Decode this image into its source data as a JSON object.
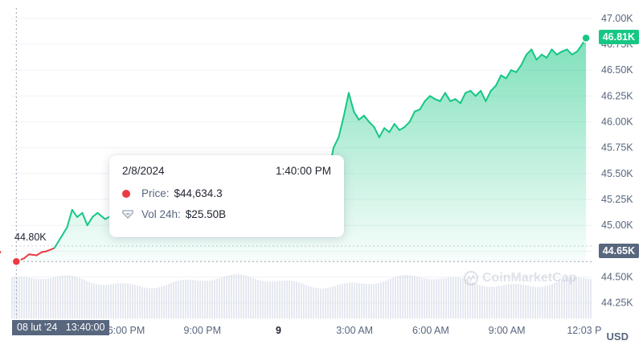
{
  "chart_data": {
    "type": "area",
    "title": "",
    "xlabel": "",
    "ylabel": "",
    "ylim": [
      44.1,
      47.1
    ],
    "y_ticks": [
      "47.00K",
      "46.75K",
      "46.50K",
      "46.25K",
      "46.00K",
      "45.75K",
      "45.50K",
      "45.25K",
      "45.00K",
      "44.75K",
      "44.50K",
      "44.25K"
    ],
    "y_tick_values": [
      47.0,
      46.75,
      46.5,
      46.25,
      46.0,
      45.75,
      45.5,
      45.25,
      45.0,
      44.75,
      44.5,
      44.25
    ],
    "x_ticks": [
      {
        "label": "6:00 PM",
        "h": 4.33,
        "bold": false
      },
      {
        "label": "9:00 PM",
        "h": 7.33,
        "bold": false
      },
      {
        "label": "9",
        "h": 10.33,
        "bold": true
      },
      {
        "label": "3:00 AM",
        "h": 13.33,
        "bold": false
      },
      {
        "label": "6:00 AM",
        "h": 16.33,
        "bold": false
      },
      {
        "label": "9:00 AM",
        "h": 19.33,
        "bold": false
      },
      {
        "label": "12:03 P",
        "h": 22.38,
        "bold": false
      }
    ],
    "x_unit": "hours since 2/8/2024 1:40:00 PM",
    "xlim": [
      -0.2,
      22.7
    ],
    "open_price": 44.65,
    "reference_label": "44.80K",
    "reference_value": 44.8,
    "series": [
      {
        "color_up": "#16c784",
        "color_down": "#ea3943",
        "x": [
          0,
          0.3,
          0.5,
          0.8,
          1.0,
          1.2,
          1.5,
          1.7,
          2.0,
          2.2,
          2.4,
          2.6,
          2.8,
          3.0,
          3.2,
          3.5,
          3.8,
          4.0,
          4.3,
          4.6,
          5.0,
          5.5,
          6.0,
          6.5,
          7.0,
          7.5,
          8.0,
          8.5,
          9.0,
          9.5,
          10.0,
          10.5,
          11.0,
          11.5,
          12.0,
          12.3,
          12.5,
          12.7,
          12.9,
          13.1,
          13.3,
          13.5,
          13.7,
          13.9,
          14.1,
          14.3,
          14.5,
          14.7,
          14.9,
          15.1,
          15.3,
          15.5,
          15.7,
          15.9,
          16.1,
          16.3,
          16.5,
          16.7,
          16.9,
          17.1,
          17.3,
          17.5,
          17.7,
          17.9,
          18.1,
          18.3,
          18.5,
          18.7,
          18.9,
          19.1,
          19.3,
          19.5,
          19.7,
          19.9,
          20.1,
          20.3,
          20.5,
          20.7,
          20.9,
          21.1,
          21.3,
          21.5,
          21.7,
          21.9,
          22.1,
          22.3,
          22.45
        ],
        "values": [
          44.65,
          44.68,
          44.72,
          44.71,
          44.74,
          44.75,
          44.78,
          44.86,
          44.98,
          45.15,
          45.08,
          45.12,
          45.0,
          45.08,
          45.12,
          45.06,
          45.1,
          45.05,
          45.1,
          45.06,
          45.12,
          45.08,
          45.14,
          45.1,
          45.15,
          45.12,
          45.18,
          45.15,
          45.2,
          45.17,
          45.22,
          45.2,
          45.25,
          45.28,
          45.35,
          45.5,
          45.75,
          45.85,
          46.05,
          46.28,
          46.1,
          46.02,
          46.06,
          46.0,
          45.95,
          45.85,
          45.94,
          45.9,
          45.98,
          45.92,
          45.95,
          46.0,
          46.1,
          46.12,
          46.2,
          46.25,
          46.22,
          46.2,
          46.28,
          46.2,
          46.22,
          46.18,
          46.28,
          46.3,
          46.25,
          46.3,
          46.2,
          46.3,
          46.35,
          46.45,
          46.42,
          46.5,
          46.48,
          46.55,
          46.65,
          46.7,
          46.6,
          46.65,
          46.62,
          46.7,
          46.65,
          46.68,
          46.7,
          46.65,
          46.68,
          46.75,
          46.81
        ]
      }
    ],
    "current_price_label": "46.81K",
    "open_price_label": "44.65K",
    "currency": "USD"
  },
  "tooltip": {
    "date": "2/8/2024",
    "time": "1:40:00 PM",
    "price_label": "Price:",
    "price_value": "$44,634.3",
    "vol_label": "Vol 24h:",
    "vol_value": "$25.50B"
  },
  "crosshair": {
    "time_label": "08 lut '24   13:40:00"
  },
  "watermark": "CoinMarketCap",
  "colors": {
    "up": "#16c784",
    "down": "#ea3943",
    "axis_text": "#58667e",
    "volume": "#cfd6e4",
    "grid": "#eff2f5"
  }
}
